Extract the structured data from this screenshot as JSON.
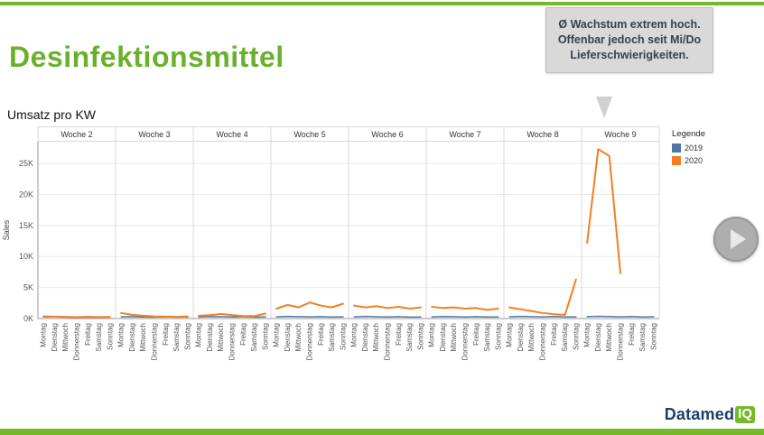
{
  "page": {
    "title": "Desinfektionsmittel",
    "subtitle": "Umsatz pro KW",
    "brand_green": "#76b82a"
  },
  "callout": {
    "text": "Ø Wachstum extrem hoch. Offenbar jedoch seit Mi/Do Lieferschwierigkeiten."
  },
  "legend": {
    "title": "Legende",
    "items": [
      {
        "label": "2019",
        "color": "#4e79a7"
      },
      {
        "label": "2020",
        "color": "#f57e20"
      }
    ]
  },
  "play_button": {
    "icon": "play-icon"
  },
  "logo": {
    "part1": "Datamed",
    "part2": "IQ"
  },
  "chart_data": {
    "type": "line",
    "title": "Umsatz pro KW",
    "ylabel": "Sales",
    "ylim": [
      0,
      28500
    ],
    "yticks": [
      "0K",
      "5K",
      "10K",
      "15K",
      "20K",
      "25K"
    ],
    "ytick_values": [
      0,
      5000,
      10000,
      15000,
      20000,
      25000
    ],
    "grid": true,
    "legend_position": "right",
    "weeks": [
      "Woche 2",
      "Woche 3",
      "Woche 4",
      "Woche 5",
      "Woche 6",
      "Woche 7",
      "Woche 8",
      "Woche 9"
    ],
    "days": [
      "Montag",
      "Dienstag",
      "Mittwoch",
      "Donnerstag",
      "Freitag",
      "Samstag",
      "Sonntag"
    ],
    "series": [
      {
        "name": "2019",
        "color": "#4e79a7",
        "values": [
          250,
          320,
          280,
          250,
          290,
          240,
          260,
          270,
          310,
          260,
          240,
          280,
          230,
          250,
          260,
          330,
          290,
          260,
          300,
          240,
          260,
          280,
          350,
          300,
          270,
          310,
          250,
          270,
          270,
          340,
          290,
          260,
          300,
          240,
          260,
          280,
          330,
          300,
          260,
          310,
          250,
          270,
          290,
          340,
          300,
          270,
          320,
          260,
          280,
          300,
          360,
          320,
          280,
          330,
          260,
          290
        ]
      },
      {
        "name": "2020",
        "color": "#f57e20",
        "values": [
          350,
          300,
          250,
          220,
          260,
          230,
          250,
          900,
          600,
          450,
          350,
          300,
          280,
          350,
          450,
          550,
          750,
          550,
          420,
          380,
          800,
          1600,
          2200,
          1800,
          2600,
          2100,
          1800,
          2400,
          2100,
          1800,
          2000,
          1700,
          1900,
          1600,
          1800,
          1900,
          1700,
          1800,
          1600,
          1700,
          1400,
          1600,
          1800,
          1500,
          1200,
          900,
          700,
          600,
          6300,
          12200,
          27300,
          26200,
          7300,
          null,
          null,
          null
        ]
      }
    ]
  }
}
